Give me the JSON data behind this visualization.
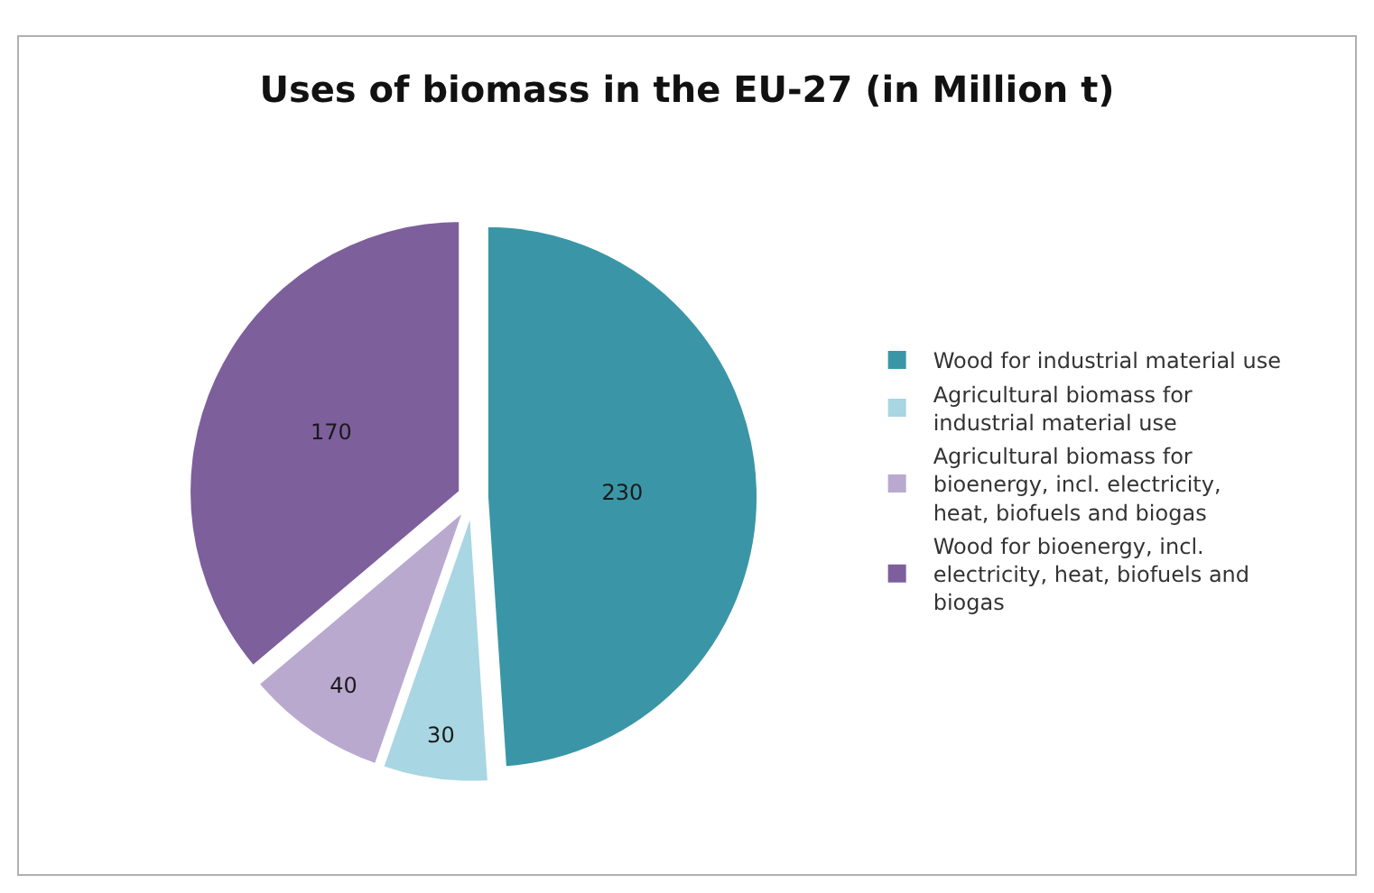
{
  "chart_data": {
    "type": "pie",
    "title": "Uses of biomass in the EU-27 (in Million t)",
    "categories": [
      "Wood for industrial material use",
      "Agricultural biomass for industrial material use",
      "Agricultural biomass for bioenergy, incl. electricity, heat, biofuels and biogas",
      "Wood for bioenergy, incl. electricity, heat, biofuels and biogas"
    ],
    "values": [
      230,
      30,
      40,
      170
    ],
    "colors": [
      "#3a96a6",
      "#a8d6e2",
      "#b9a9cf",
      "#7d5f9c"
    ],
    "data_labels": true,
    "legend": "right"
  }
}
